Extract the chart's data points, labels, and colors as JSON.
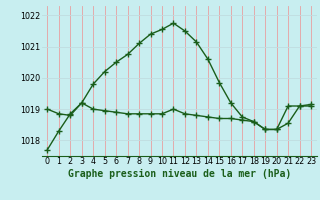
{
  "title": "Graphe pression niveau de la mer (hPa)",
  "bg_color": "#c8eef0",
  "grid_color_v": "#e8a0a0",
  "grid_color_h": "#c0dde0",
  "line_color": "#1a5e1a",
  "x_values": [
    0,
    1,
    2,
    3,
    4,
    5,
    6,
    7,
    8,
    9,
    10,
    11,
    12,
    13,
    14,
    15,
    16,
    17,
    18,
    19,
    20,
    21,
    22,
    23
  ],
  "series1": [
    1017.7,
    1018.3,
    1018.85,
    1019.2,
    1019.8,
    1020.2,
    1020.5,
    1020.75,
    1021.1,
    1021.4,
    1021.55,
    1021.75,
    1021.5,
    1021.15,
    1020.6,
    1019.85,
    1019.2,
    1018.75,
    1018.6,
    1018.35,
    1018.35,
    1018.55,
    1019.1,
    1019.15
  ],
  "series2": [
    1019.0,
    1018.85,
    1018.8,
    1019.2,
    1019.0,
    1018.95,
    1018.9,
    1018.85,
    1018.85,
    1018.85,
    1018.85,
    1019.0,
    1018.85,
    1018.8,
    1018.75,
    1018.7,
    1018.7,
    1018.65,
    1018.6,
    1018.35,
    1018.35,
    1019.1,
    1019.1,
    1019.1
  ],
  "ylim": [
    1017.5,
    1022.3
  ],
  "yticks": [
    1018,
    1019,
    1020,
    1021,
    1022
  ],
  "xlim": [
    -0.5,
    23.5
  ],
  "title_fontsize": 7.0,
  "tick_fontsize": 5.8
}
